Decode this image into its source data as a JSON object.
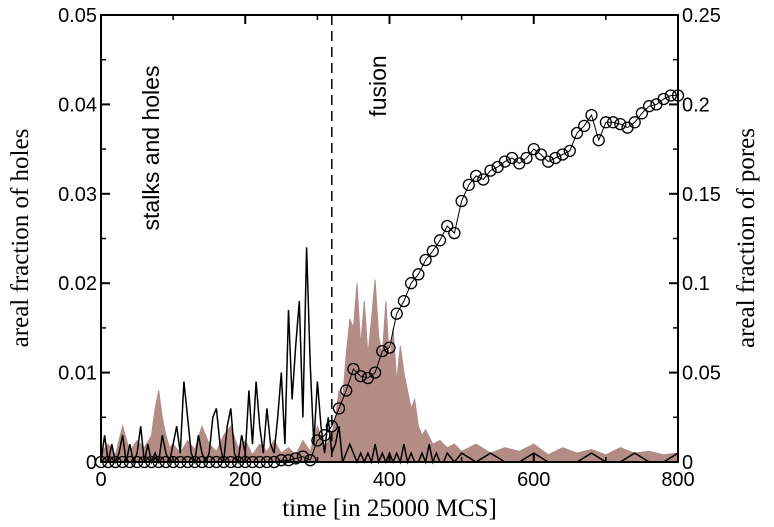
{
  "chart_data": {
    "type": "line",
    "xlabel": "time [in 25000 MCS]",
    "ylabel": "areal fraction of holes",
    "ylabel_right": "areal fraction of pores",
    "xlim": [
      0,
      800
    ],
    "ylim": [
      0,
      0.05
    ],
    "ylim_right": [
      0,
      0.25
    ],
    "x_ticks": [
      "0",
      "200",
      "400",
      "600",
      "800"
    ],
    "y_ticks": [
      "0",
      "0.01",
      "0.02",
      "0.03",
      "0.04",
      "0.05"
    ],
    "y_ticks_right": [
      "0",
      "0.05",
      "0.1",
      "0.15",
      "0.2",
      "0.25"
    ],
    "divider_x": 320,
    "annotations": [
      {
        "id": "left",
        "text": "stalks and holes"
      },
      {
        "id": "right",
        "text": "fusion"
      }
    ],
    "colors": {
      "holes_line": "#000000",
      "pores_fill": "#b48c86",
      "circles": "#000000"
    },
    "series": [
      {
        "key": "holes",
        "axis": "left",
        "style": "line",
        "x": [
          0,
          5,
          10,
          15,
          20,
          25,
          30,
          35,
          40,
          45,
          50,
          55,
          60,
          65,
          70,
          75,
          80,
          85,
          90,
          95,
          100,
          105,
          110,
          115,
          120,
          125,
          130,
          135,
          140,
          145,
          150,
          155,
          160,
          165,
          170,
          175,
          180,
          185,
          190,
          195,
          200,
          205,
          210,
          215,
          220,
          225,
          230,
          235,
          240,
          245,
          250,
          255,
          260,
          265,
          270,
          275,
          280,
          285,
          290,
          295,
          300,
          305,
          310,
          315,
          320,
          325,
          330,
          335,
          340,
          345,
          350,
          355,
          360,
          365,
          370,
          375,
          380,
          385,
          390,
          395,
          400,
          405,
          410,
          415,
          420,
          425,
          430,
          435,
          440,
          445,
          450,
          455,
          460,
          465,
          470,
          475,
          480,
          490,
          500,
          520,
          540,
          560,
          580,
          600,
          620,
          640,
          660,
          680,
          700,
          720,
          740,
          760,
          780,
          800
        ],
        "y": [
          0,
          0.003,
          0,
          0.002,
          0,
          0.001,
          0.003,
          0,
          0.002,
          0,
          0.001,
          0.004,
          0,
          0.002,
          0,
          0.001,
          0,
          0.003,
          0.001,
          0,
          0.002,
          0.004,
          0.001,
          0.009,
          0.005,
          0.001,
          0,
          0.003,
          0.001,
          0,
          0.001,
          0.005,
          0.006,
          0.002,
          0,
          0.004,
          0.006,
          0.001,
          0,
          0.003,
          0.001,
          0.008,
          0.002,
          0.009,
          0.004,
          0.001,
          0.006,
          0.002,
          0.001,
          0.005,
          0.01,
          0.002,
          0.017,
          0.007,
          0.013,
          0.018,
          0.005,
          0.024,
          0.011,
          0.002,
          0.009,
          0.004,
          0.001,
          0.005,
          0.001,
          0.002,
          0.004,
          0,
          0.001,
          0.002,
          0.001,
          0,
          0.001,
          0,
          0.001,
          0,
          0.002,
          0,
          0.001,
          0,
          0.001,
          0,
          0.001,
          0,
          0.002,
          0,
          0.001,
          0,
          0,
          0.001,
          0,
          0.002,
          0,
          0.001,
          0,
          0,
          0.001,
          0,
          0.001,
          0,
          0.001,
          0,
          0,
          0.001,
          0,
          0,
          0,
          0.001,
          0,
          0,
          0.001,
          0,
          0,
          0.001
        ]
      },
      {
        "key": "pores",
        "axis": "right",
        "style": "filled",
        "x": [
          0,
          10,
          20,
          30,
          40,
          50,
          60,
          70,
          75,
          80,
          85,
          90,
          95,
          100,
          110,
          120,
          130,
          140,
          150,
          160,
          170,
          180,
          190,
          200,
          210,
          220,
          230,
          240,
          250,
          260,
          270,
          280,
          290,
          300,
          310,
          320,
          325,
          330,
          335,
          340,
          345,
          350,
          355,
          360,
          365,
          370,
          375,
          380,
          385,
          390,
          395,
          400,
          405,
          410,
          415,
          420,
          425,
          430,
          435,
          440,
          445,
          450,
          460,
          470,
          480,
          490,
          500,
          520,
          540,
          560,
          580,
          600,
          620,
          640,
          660,
          680,
          700,
          720,
          740,
          760,
          780,
          800
        ],
        "y": [
          0.005,
          0.01,
          0.004,
          0.02,
          0.006,
          0.012,
          0.008,
          0.015,
          0.03,
          0.04,
          0.025,
          0.015,
          0.008,
          0.01,
          0.005,
          0.012,
          0.007,
          0.02,
          0.01,
          0.006,
          0.015,
          0.02,
          0.008,
          0.012,
          0.004,
          0.01,
          0.006,
          0.012,
          0.005,
          0.008,
          0.004,
          0.012,
          0.006,
          0.02,
          0.008,
          0.015,
          0.025,
          0.04,
          0.035,
          0.06,
          0.08,
          0.075,
          0.1,
          0.065,
          0.09,
          0.06,
          0.08,
          0.102,
          0.07,
          0.06,
          0.09,
          0.055,
          0.075,
          0.045,
          0.065,
          0.05,
          0.04,
          0.03,
          0.035,
          0.02,
          0.015,
          0.018,
          0.01,
          0.012,
          0.008,
          0.01,
          0.006,
          0.01,
          0.005,
          0.008,
          0.006,
          0.01,
          0.004,
          0.008,
          0.005,
          0.007,
          0.004,
          0.008,
          0.005,
          0.006,
          0.004,
          0.005
        ]
      },
      {
        "key": "pores_markers",
        "axis": "right",
        "style": "line-circles",
        "x": [
          0,
          10,
          20,
          30,
          40,
          50,
          60,
          70,
          80,
          90,
          100,
          110,
          120,
          130,
          140,
          150,
          160,
          170,
          180,
          190,
          200,
          210,
          220,
          230,
          240,
          250,
          260,
          270,
          280,
          290,
          300,
          310,
          320,
          330,
          340,
          350,
          360,
          370,
          380,
          390,
          400,
          410,
          420,
          430,
          440,
          450,
          460,
          470,
          480,
          490,
          500,
          510,
          520,
          530,
          540,
          550,
          560,
          570,
          580,
          590,
          600,
          610,
          620,
          630,
          640,
          650,
          660,
          670,
          680,
          690,
          700,
          710,
          720,
          730,
          740,
          750,
          760,
          770,
          780,
          790,
          800
        ],
        "y": [
          0,
          0,
          0,
          0,
          0,
          0,
          0,
          0,
          0,
          0,
          0,
          0,
          0,
          0,
          0,
          0,
          0,
          0,
          0,
          0,
          0,
          0,
          0,
          0,
          0,
          0.001,
          0.001,
          0.002,
          0.003,
          0.001,
          0.012,
          0.015,
          0.02,
          0.03,
          0.04,
          0.052,
          0.048,
          0.047,
          0.05,
          0.062,
          0.064,
          0.083,
          0.09,
          0.1,
          0.105,
          0.113,
          0.118,
          0.124,
          0.132,
          0.128,
          0.146,
          0.155,
          0.16,
          0.158,
          0.163,
          0.165,
          0.168,
          0.17,
          0.167,
          0.17,
          0.175,
          0.172,
          0.168,
          0.17,
          0.172,
          0.174,
          0.184,
          0.188,
          0.194,
          0.18,
          0.19,
          0.19,
          0.189,
          0.187,
          0.19,
          0.195,
          0.199,
          0.2,
          0.203,
          0.205,
          0.205
        ]
      }
    ]
  }
}
